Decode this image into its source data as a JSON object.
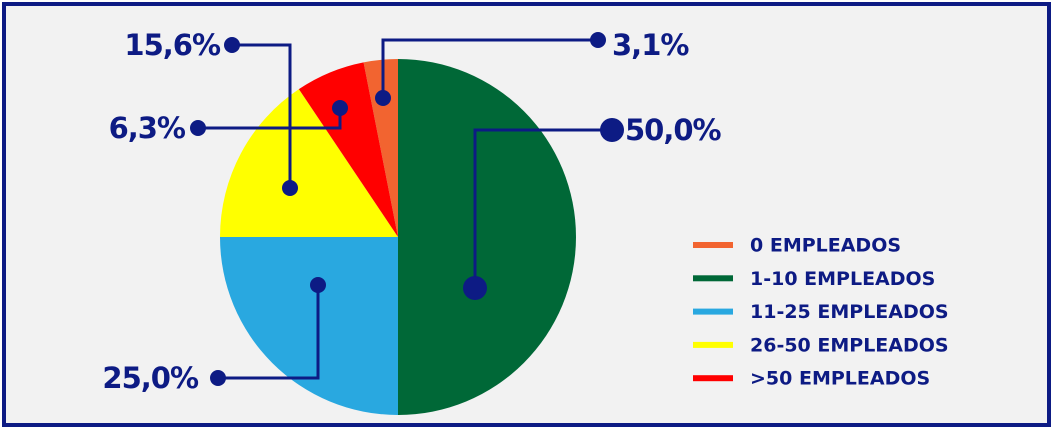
{
  "chart_data": {
    "type": "pie",
    "categories": [
      "0 EMPLEADOS",
      "1-10 EMPLEADOS",
      "11-25 EMPLEADOS",
      "26-50 EMPLEADOS",
      ">50 EMPLEADOS"
    ],
    "values": [
      3.1,
      50.0,
      25.0,
      15.6,
      6.3
    ],
    "value_labels": [
      "3,1%",
      "50,0%",
      "25,0%",
      "15,6%",
      "6,3%"
    ],
    "colors": [
      "#f26430",
      "#006837",
      "#29a8e0",
      "#ffff00",
      "#ff0000"
    ],
    "legend": "right"
  }
}
